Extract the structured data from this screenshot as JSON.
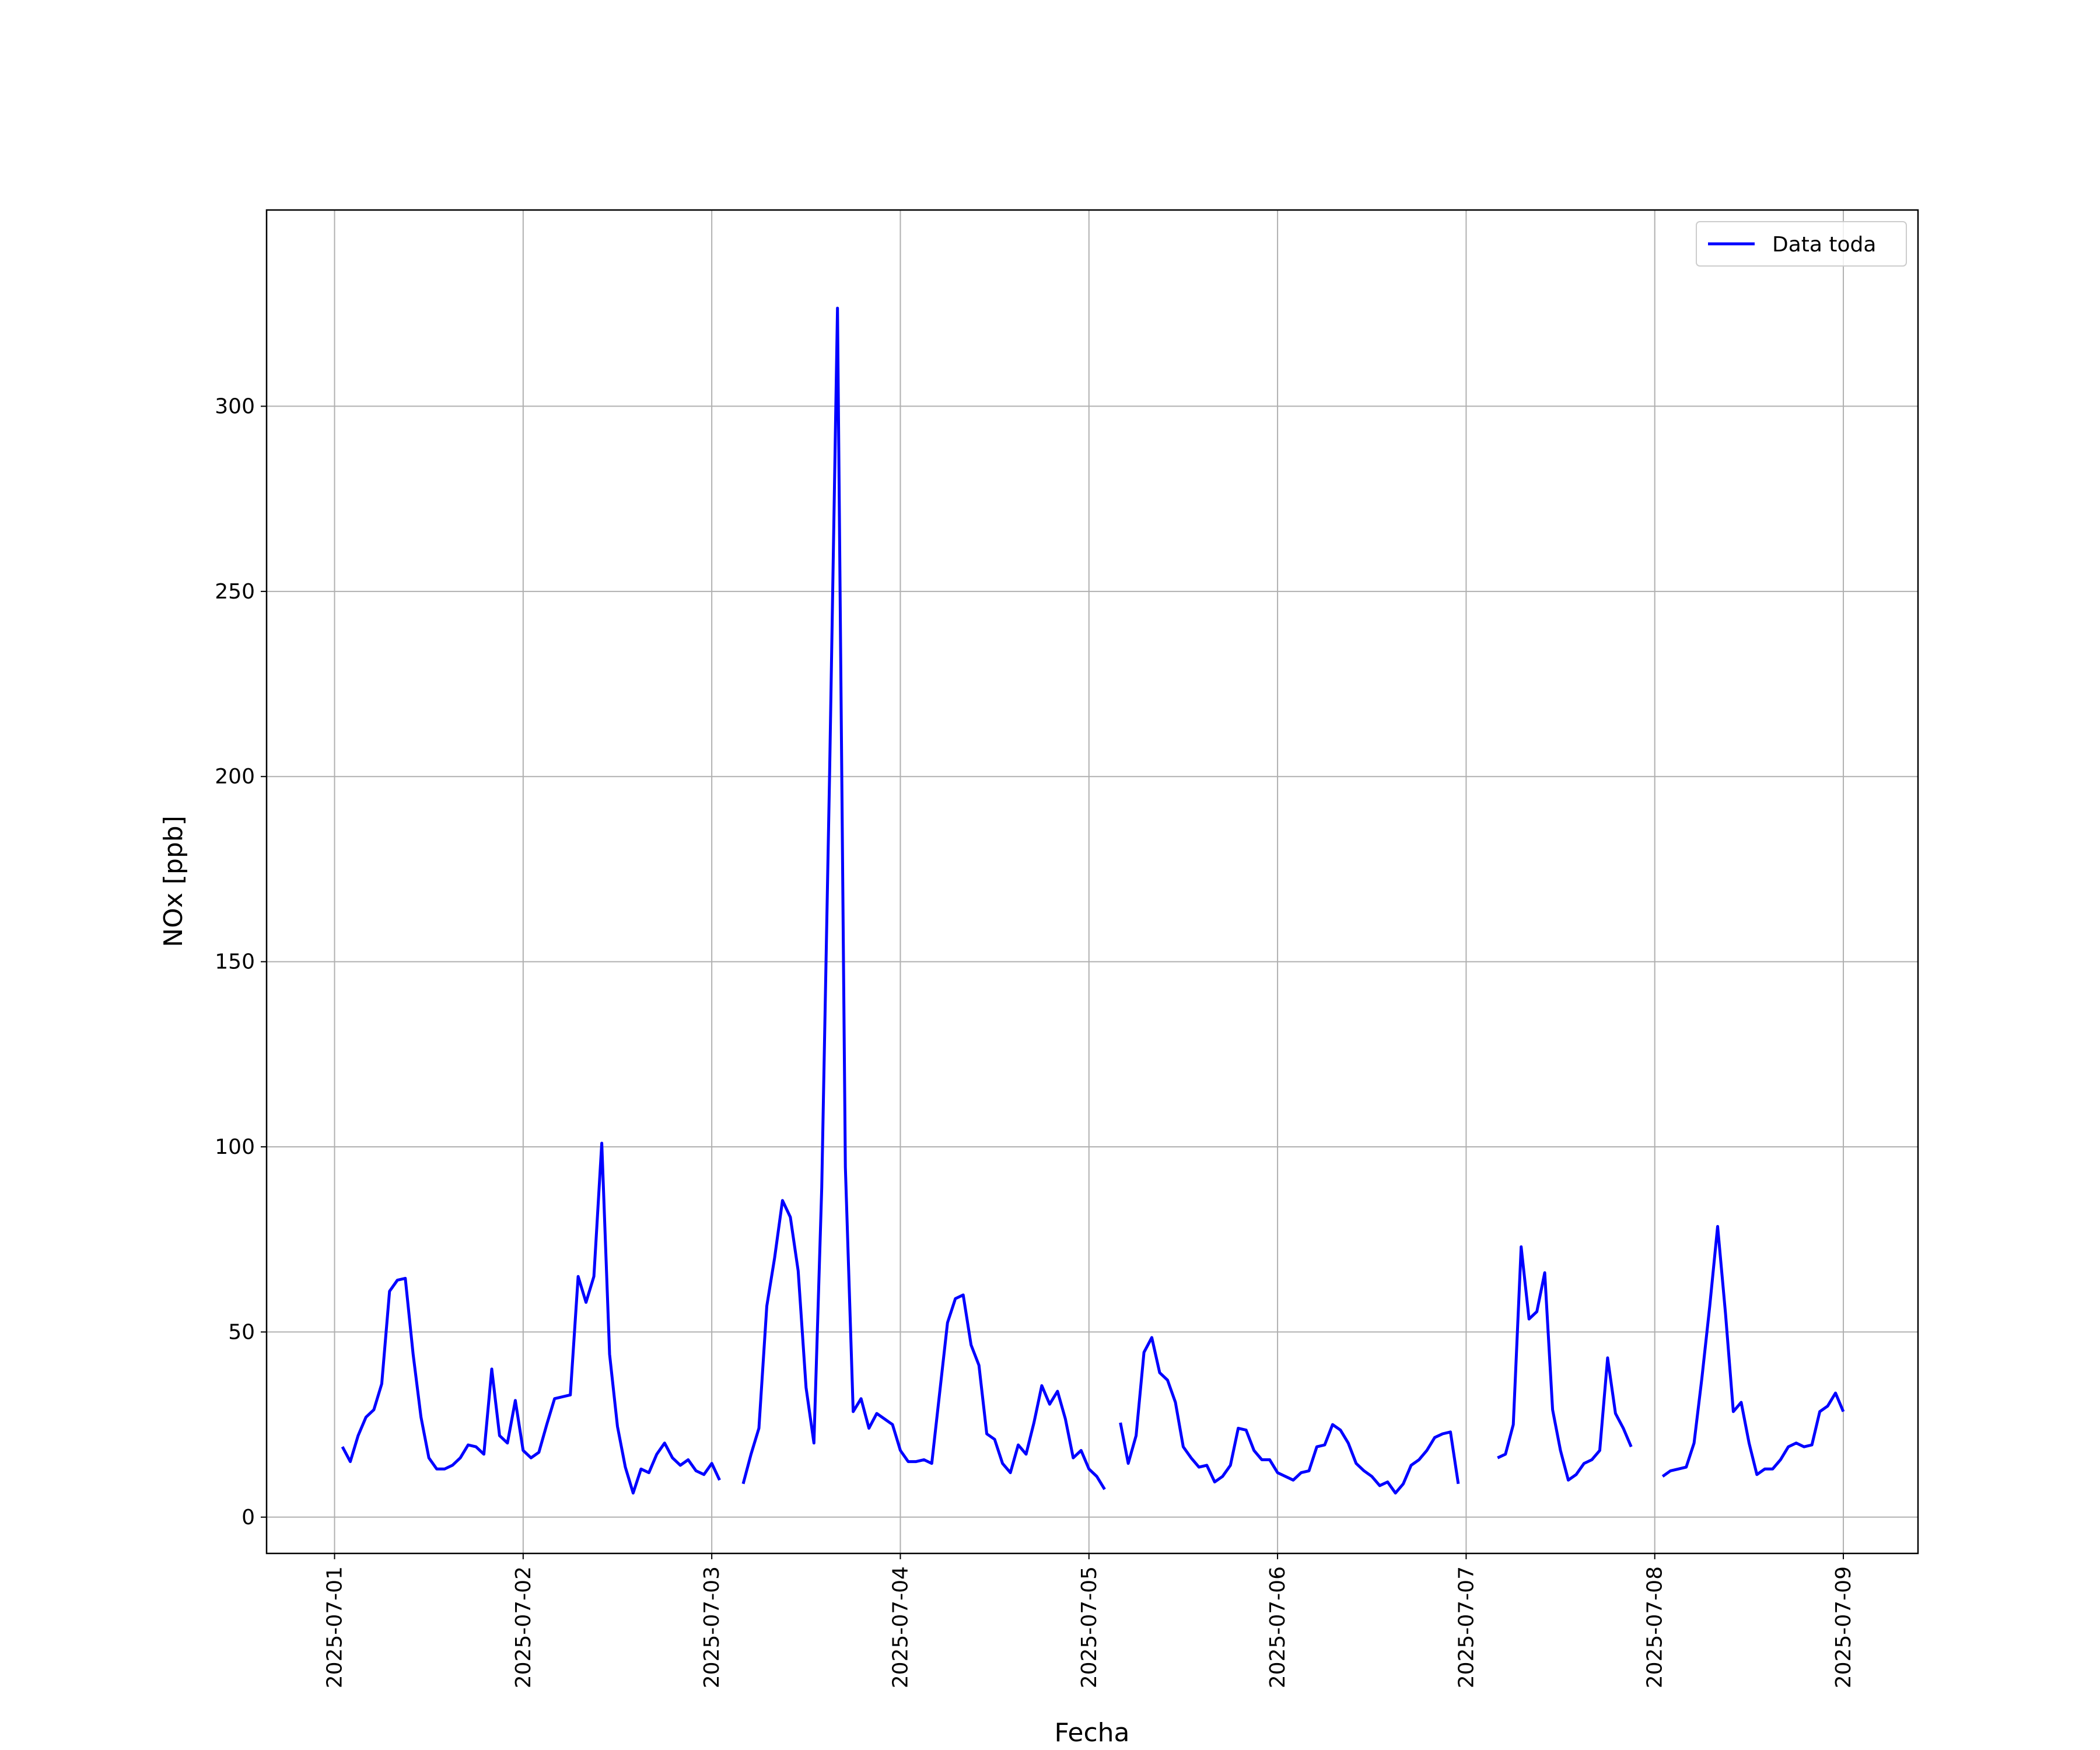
{
  "chart_data": {
    "type": "line",
    "xlabel": "Fecha",
    "ylabel": "NOx [ppb]",
    "x": [
      "2025-07-01 01:00",
      "2025-07-01 02:00",
      "2025-07-01 03:00",
      "2025-07-01 04:00",
      "2025-07-01 05:00",
      "2025-07-01 06:00",
      "2025-07-01 07:00",
      "2025-07-01 08:00",
      "2025-07-01 09:00",
      "2025-07-01 10:00",
      "2025-07-01 11:00",
      "2025-07-01 12:00",
      "2025-07-01 13:00",
      "2025-07-01 14:00",
      "2025-07-01 15:00",
      "2025-07-01 16:00",
      "2025-07-01 17:00",
      "2025-07-01 18:00",
      "2025-07-01 19:00",
      "2025-07-01 20:00",
      "2025-07-01 21:00",
      "2025-07-01 22:00",
      "2025-07-01 23:00",
      "2025-07-02 00:00",
      "2025-07-02 01:00",
      "2025-07-02 02:00",
      "2025-07-02 03:00",
      "2025-07-02 04:00",
      "2025-07-02 05:00",
      "2025-07-02 06:00",
      "2025-07-02 07:00",
      "2025-07-02 08:00",
      "2025-07-02 09:00",
      "2025-07-02 10:00",
      "2025-07-02 11:00",
      "2025-07-02 12:00",
      "2025-07-02 13:00",
      "2025-07-02 14:00",
      "2025-07-02 15:00",
      "2025-07-02 16:00",
      "2025-07-02 17:00",
      "2025-07-02 18:00",
      "2025-07-02 19:00",
      "2025-07-02 20:00",
      "2025-07-02 21:00",
      "2025-07-02 22:00",
      "2025-07-02 23:00",
      "2025-07-03 00:00",
      "2025-07-03 01:00",
      "2025-07-03 02:00",
      "2025-07-03 03:00",
      "2025-07-03 04:00",
      "2025-07-03 05:00",
      "2025-07-03 06:00",
      "2025-07-03 07:00",
      "2025-07-03 08:00",
      "2025-07-03 09:00",
      "2025-07-03 10:00",
      "2025-07-03 11:00",
      "2025-07-03 12:00",
      "2025-07-03 13:00",
      "2025-07-03 14:00",
      "2025-07-03 15:00",
      "2025-07-03 16:00",
      "2025-07-03 17:00",
      "2025-07-03 18:00",
      "2025-07-03 19:00",
      "2025-07-03 20:00",
      "2025-07-03 21:00",
      "2025-07-03 22:00",
      "2025-07-03 23:00",
      "2025-07-04 00:00",
      "2025-07-04 01:00",
      "2025-07-04 02:00",
      "2025-07-04 03:00",
      "2025-07-04 04:00",
      "2025-07-04 05:00",
      "2025-07-04 06:00",
      "2025-07-04 07:00",
      "2025-07-04 08:00",
      "2025-07-04 09:00",
      "2025-07-04 10:00",
      "2025-07-04 11:00",
      "2025-07-04 12:00",
      "2025-07-04 13:00",
      "2025-07-04 14:00",
      "2025-07-04 15:00",
      "2025-07-04 16:00",
      "2025-07-04 17:00",
      "2025-07-04 18:00",
      "2025-07-04 19:00",
      "2025-07-04 20:00",
      "2025-07-04 21:00",
      "2025-07-04 22:00",
      "2025-07-04 23:00",
      "2025-07-05 00:00",
      "2025-07-05 01:00",
      "2025-07-05 02:00",
      "2025-07-05 03:00",
      "2025-07-05 04:00",
      "2025-07-05 05:00",
      "2025-07-05 06:00",
      "2025-07-05 07:00",
      "2025-07-05 08:00",
      "2025-07-05 09:00",
      "2025-07-05 10:00",
      "2025-07-05 11:00",
      "2025-07-05 12:00",
      "2025-07-05 13:00",
      "2025-07-05 14:00",
      "2025-07-05 15:00",
      "2025-07-05 16:00",
      "2025-07-05 17:00",
      "2025-07-05 18:00",
      "2025-07-05 19:00",
      "2025-07-05 20:00",
      "2025-07-05 21:00",
      "2025-07-05 22:00",
      "2025-07-05 23:00",
      "2025-07-06 00:00",
      "2025-07-06 01:00",
      "2025-07-06 02:00",
      "2025-07-06 03:00",
      "2025-07-06 04:00",
      "2025-07-06 05:00",
      "2025-07-06 06:00",
      "2025-07-06 07:00",
      "2025-07-06 08:00",
      "2025-07-06 09:00",
      "2025-07-06 10:00",
      "2025-07-06 11:00",
      "2025-07-06 12:00",
      "2025-07-06 13:00",
      "2025-07-06 14:00",
      "2025-07-06 15:00",
      "2025-07-06 16:00",
      "2025-07-06 17:00",
      "2025-07-06 18:00",
      "2025-07-06 19:00",
      "2025-07-06 20:00",
      "2025-07-06 21:00",
      "2025-07-06 22:00",
      "2025-07-06 23:00",
      "2025-07-07 00:00",
      "2025-07-07 01:00",
      "2025-07-07 02:00",
      "2025-07-07 03:00",
      "2025-07-07 04:00",
      "2025-07-07 05:00",
      "2025-07-07 06:00",
      "2025-07-07 07:00",
      "2025-07-07 08:00",
      "2025-07-07 09:00",
      "2025-07-07 10:00",
      "2025-07-07 11:00",
      "2025-07-07 12:00",
      "2025-07-07 13:00",
      "2025-07-07 14:00",
      "2025-07-07 15:00",
      "2025-07-07 16:00",
      "2025-07-07 17:00",
      "2025-07-07 18:00",
      "2025-07-07 19:00",
      "2025-07-07 20:00",
      "2025-07-07 21:00",
      "2025-07-07 22:00",
      "2025-07-07 23:00",
      "2025-07-08 00:00",
      "2025-07-08 01:00",
      "2025-07-08 02:00",
      "2025-07-08 03:00",
      "2025-07-08 04:00",
      "2025-07-08 05:00",
      "2025-07-08 06:00",
      "2025-07-08 07:00",
      "2025-07-08 08:00",
      "2025-07-08 09:00",
      "2025-07-08 10:00",
      "2025-07-08 11:00",
      "2025-07-08 12:00",
      "2025-07-08 13:00",
      "2025-07-08 14:00",
      "2025-07-08 15:00",
      "2025-07-08 16:00",
      "2025-07-08 17:00",
      "2025-07-08 18:00",
      "2025-07-08 19:00",
      "2025-07-08 20:00",
      "2025-07-08 21:00",
      "2025-07-08 22:00",
      "2025-07-08 23:00",
      "2025-07-09 00:00"
    ],
    "series": [
      {
        "name": "Data toda",
        "color": "#0000ff",
        "values": [
          19,
          15,
          22,
          27,
          29,
          36,
          61,
          64,
          64.5,
          44,
          27,
          16,
          13,
          13,
          14,
          16,
          19.5,
          19,
          17,
          40,
          22,
          20,
          31.5,
          18,
          16,
          17.5,
          25,
          32,
          32.5,
          33,
          65,
          58,
          65,
          101,
          44,
          24.5,
          13.5,
          6.5,
          13,
          12,
          17,
          20,
          16,
          14,
          15.5,
          12.5,
          11.5,
          14.5,
          10,
          null,
          null,
          9,
          17,
          24,
          57,
          70,
          85.5,
          81,
          66.5,
          35,
          20,
          89,
          201,
          326.5,
          94.5,
          28.5,
          32,
          24,
          28,
          26.5,
          25,
          18,
          15,
          15,
          15.5,
          14.5,
          33.5,
          52.5,
          59,
          60,
          46.5,
          41,
          22.5,
          21,
          14.5,
          12,
          19.5,
          17,
          25.5,
          35.5,
          30.5,
          34,
          26.5,
          16,
          18,
          13,
          11,
          7.5,
          null,
          25.5,
          14.5,
          22,
          44.5,
          48.5,
          39,
          37,
          31,
          19,
          16,
          13.5,
          14,
          9.5,
          11,
          14,
          24,
          23.5,
          18,
          15.5,
          15.5,
          12,
          11,
          10,
          12,
          12.5,
          19,
          19.5,
          25,
          23.5,
          20,
          14.5,
          12.5,
          11,
          8.5,
          9.5,
          6.5,
          9,
          14,
          15.5,
          18,
          21.5,
          22.5,
          23,
          9,
          null,
          null,
          null,
          null,
          16,
          17,
          25,
          73,
          53.5,
          55.5,
          66,
          29,
          18,
          10,
          11.5,
          14.5,
          15.5,
          18,
          43,
          28,
          24,
          19,
          null,
          null,
          null,
          11,
          12.5,
          13,
          13.5,
          20,
          37.5,
          57,
          78.5,
          55,
          28.5,
          31,
          20,
          11.5,
          13,
          13,
          15.5,
          19,
          20,
          19,
          19.5,
          28.5,
          30,
          33.5,
          28.5
        ]
      }
    ],
    "xlim": [
      "2025-06-30 15:21",
      "2025-07-09 09:30"
    ],
    "xticks": [
      "2025-07-01",
      "2025-07-02",
      "2025-07-03",
      "2025-07-04",
      "2025-07-05",
      "2025-07-06",
      "2025-07-07",
      "2025-07-08",
      "2025-07-09"
    ],
    "ylim": [
      -9.8,
      353
    ],
    "yticks": [
      0,
      50,
      100,
      150,
      200,
      250,
      300
    ],
    "grid": true,
    "legend": "upper right"
  }
}
